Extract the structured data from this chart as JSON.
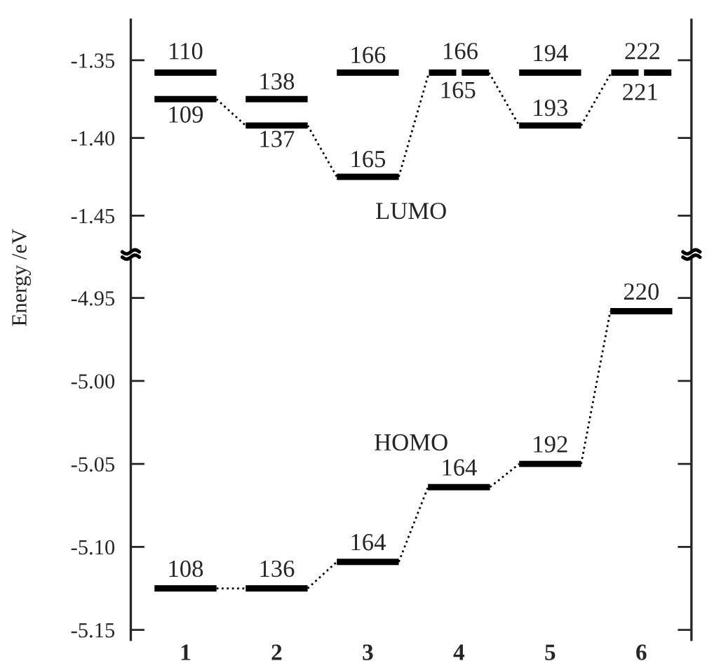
{
  "chart_data": [
    {
      "type": "line",
      "ylabel": "Energy /eV",
      "xlim": [
        0.4,
        6.55
      ],
      "ylim": [
        -1.472,
        -1.324
      ],
      "yticks": [
        {
          "value": -1.35,
          "label": "-1.35"
        },
        {
          "value": -1.4,
          "label": "-1.40"
        },
        {
          "value": -1.45,
          "label": "-1.45"
        }
      ],
      "tick_labels": "y",
      "series": [
        {
          "color": "#000000",
          "x": [
            0.66,
            1.34
          ],
          "values": [
            -1.358,
            -1.358
          ]
        },
        {
          "color": "#000000",
          "x": [
            0.66,
            1.34
          ],
          "values": [
            -1.375,
            -1.375
          ]
        },
        {
          "color": "#000000",
          "x": [
            1.66,
            2.34
          ],
          "values": [
            -1.375,
            -1.375
          ]
        },
        {
          "color": "#000000",
          "x": [
            1.66,
            2.34
          ],
          "values": [
            -1.392,
            -1.392
          ]
        },
        {
          "color": "#000000",
          "x": [
            2.66,
            3.34
          ],
          "values": [
            -1.358,
            -1.358
          ]
        },
        {
          "color": "#000000",
          "x": [
            2.66,
            3.34
          ],
          "values": [
            -1.425,
            -1.425
          ]
        },
        {
          "color": "#000000",
          "x": [
            3.67,
            3.97
          ],
          "values": [
            -1.358,
            -1.358
          ]
        },
        {
          "color": "#000000",
          "x": [
            4.03,
            4.33
          ],
          "values": [
            -1.358,
            -1.358
          ]
        },
        {
          "color": "#000000",
          "x": [
            4.66,
            5.34
          ],
          "values": [
            -1.358,
            -1.358
          ]
        },
        {
          "color": "#000000",
          "x": [
            4.66,
            5.34
          ],
          "values": [
            -1.392,
            -1.392
          ]
        },
        {
          "color": "#000000",
          "x": [
            5.67,
            5.97
          ],
          "values": [
            -1.358,
            -1.358
          ]
        },
        {
          "color": "#000000",
          "x": [
            6.03,
            6.33
          ],
          "values": [
            -1.358,
            -1.358
          ]
        },
        {
          "color": "#000000",
          "line_style": "dotted",
          "x": [
            1.34,
            1.66
          ],
          "values": [
            -1.375,
            -1.392
          ]
        },
        {
          "color": "#000000",
          "line_style": "dotted",
          "x": [
            2.34,
            2.66
          ],
          "values": [
            -1.392,
            -1.425
          ]
        },
        {
          "color": "#000000",
          "line_style": "dotted",
          "x": [
            3.34,
            3.67
          ],
          "values": [
            -1.425,
            -1.358
          ]
        },
        {
          "color": "#000000",
          "line_style": "dotted",
          "x": [
            4.33,
            4.66
          ],
          "values": [
            -1.358,
            -1.392
          ]
        },
        {
          "color": "#000000",
          "line_style": "dotted",
          "x": [
            5.34,
            5.67
          ],
          "values": [
            -1.392,
            -1.358
          ]
        }
      ],
      "annotations": [
        {
          "text": "110",
          "x": 1,
          "y": -1.358
        },
        {
          "text": "109",
          "x": 1,
          "y": -1.375
        },
        {
          "text": "138",
          "x": 2,
          "y": -1.375
        },
        {
          "text": "137",
          "x": 2,
          "y": -1.392
        },
        {
          "text": "166",
          "x": 3,
          "y": -1.358
        },
        {
          "text": "165",
          "x": 3,
          "y": -1.425
        },
        {
          "text": "166",
          "x": 3.82,
          "y": -1.358
        },
        {
          "text": "165",
          "x": 4.18,
          "y": -1.358
        },
        {
          "text": "194",
          "x": 5,
          "y": -1.358
        },
        {
          "text": "193",
          "x": 5,
          "y": -1.392
        },
        {
          "text": "222",
          "x": 5.82,
          "y": -1.358
        },
        {
          "text": "221",
          "x": 6.18,
          "y": -1.358
        },
        "LUMO"
      ]
    },
    {
      "type": "line",
      "xlim": [
        0.4,
        6.55
      ],
      "xticks": [
        1,
        2,
        3,
        4,
        5,
        6
      ],
      "ylim": [
        -5.156,
        -4.927
      ],
      "yticks": [
        {
          "value": -4.95,
          "label": "-4.95"
        },
        {
          "value": -5.0,
          "label": "-5.00"
        },
        {
          "value": -5.05,
          "label": "-5.05"
        },
        {
          "value": -5.1,
          "label": "-5.10"
        },
        {
          "value": -5.15,
          "label": "-5.15"
        }
      ],
      "series": [
        {
          "color": "#000000",
          "x": [
            0.66,
            1.34
          ],
          "values": [
            -5.125,
            -5.125
          ]
        },
        {
          "color": "#000000",
          "x": [
            1.66,
            2.34
          ],
          "values": [
            -5.125,
            -5.125
          ]
        },
        {
          "color": "#000000",
          "x": [
            2.66,
            3.34
          ],
          "values": [
            -5.109,
            -5.109
          ]
        },
        {
          "color": "#000000",
          "x": [
            3.66,
            4.34
          ],
          "values": [
            -5.064,
            -5.064
          ]
        },
        {
          "color": "#000000",
          "x": [
            4.66,
            5.34
          ],
          "values": [
            -5.05,
            -5.05
          ]
        },
        {
          "color": "#000000",
          "x": [
            5.66,
            6.34
          ],
          "values": [
            -4.958,
            -4.958
          ]
        },
        {
          "color": "#000000",
          "line_style": "dotted",
          "x": [
            1.34,
            1.66
          ],
          "values": [
            -5.125,
            -5.125
          ]
        },
        {
          "color": "#000000",
          "line_style": "dotted",
          "x": [
            2.34,
            2.66
          ],
          "values": [
            -5.125,
            -5.109
          ]
        },
        {
          "color": "#000000",
          "line_style": "dotted",
          "x": [
            3.34,
            3.66
          ],
          "values": [
            -5.109,
            -5.064
          ]
        },
        {
          "color": "#000000",
          "line_style": "dotted",
          "x": [
            4.34,
            4.66
          ],
          "values": [
            -5.064,
            -5.05
          ]
        },
        {
          "color": "#000000",
          "line_style": "dotted",
          "x": [
            5.34,
            5.66
          ],
          "values": [
            -5.05,
            -4.958
          ]
        }
      ],
      "annotations": [
        {
          "text": "108",
          "x": 1,
          "y": -5.125
        },
        {
          "text": "136",
          "x": 2,
          "y": -5.125
        },
        {
          "text": "164",
          "x": 3,
          "y": -5.109
        },
        {
          "text": "164",
          "x": 4,
          "y": -5.064
        },
        {
          "text": "192",
          "x": 5,
          "y": -5.05
        },
        {
          "text": "220",
          "x": 6,
          "y": -4.958
        },
        "HOMO"
      ]
    }
  ]
}
